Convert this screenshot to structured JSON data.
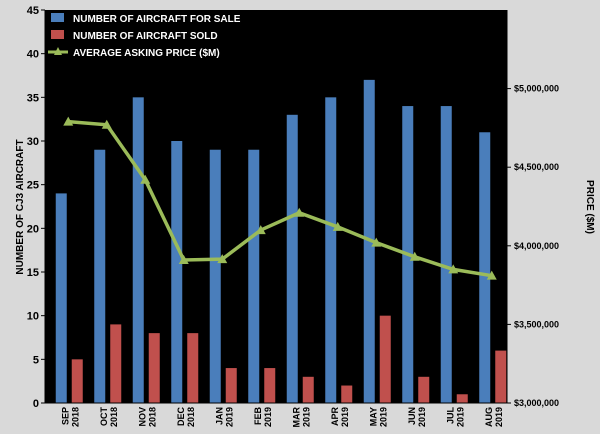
{
  "chart_data": {
    "type": "bar",
    "categories": [
      [
        "SEP",
        "2018"
      ],
      [
        "OCT",
        "2018"
      ],
      [
        "NOV",
        "2018"
      ],
      [
        "DEC",
        "2018"
      ],
      [
        "JAN",
        "2019"
      ],
      [
        "FEB",
        "2019"
      ],
      [
        "MAR",
        "2019"
      ],
      [
        "APR",
        "2019"
      ],
      [
        "MAY",
        "2019"
      ],
      [
        "JUN",
        "2019"
      ],
      [
        "JUL",
        "2019"
      ],
      [
        "AUG",
        "2019"
      ]
    ],
    "series": [
      {
        "name": "NUMBER OF AIRCRAFT FOR SALE",
        "type": "bar",
        "axis": "left",
        "color": "#4a7ebb",
        "values": [
          24,
          29,
          35,
          30,
          29,
          29,
          33,
          35,
          37,
          34,
          34,
          31
        ]
      },
      {
        "name": "NUMBER OF AIRCRAFT SOLD",
        "type": "bar",
        "axis": "left",
        "color": "#c0504d",
        "values": [
          5,
          9,
          8,
          8,
          4,
          4,
          3,
          2,
          10,
          3,
          1,
          6
        ]
      },
      {
        "name": "AVERAGE ASKING PRICE ($M)",
        "type": "line",
        "axis": "right",
        "color": "#9bbb59",
        "marker": "triangle",
        "values": [
          4790000,
          4770000,
          4420000,
          3910000,
          3915000,
          4100000,
          4210000,
          4120000,
          4020000,
          3930000,
          3850000,
          3810000
        ]
      }
    ],
    "ylabel": "NUMBER OF CJ3 AIRCRAFT",
    "y2label": "PRICE ($M)",
    "ylim": [
      0,
      45
    ],
    "yticks": [
      0,
      5,
      10,
      15,
      20,
      25,
      30,
      35,
      40,
      45
    ],
    "y2lim": [
      3000000,
      5500000
    ],
    "y2ticks": [
      "$3,000,000",
      "$3,500,000",
      "$4,000,000",
      "$4,500,000",
      "$5,000,000"
    ],
    "y2tick_values": [
      3000000,
      3500000,
      4000000,
      4500000,
      5000000
    ],
    "grid": false,
    "legend": "top-left",
    "background": "#000000"
  }
}
